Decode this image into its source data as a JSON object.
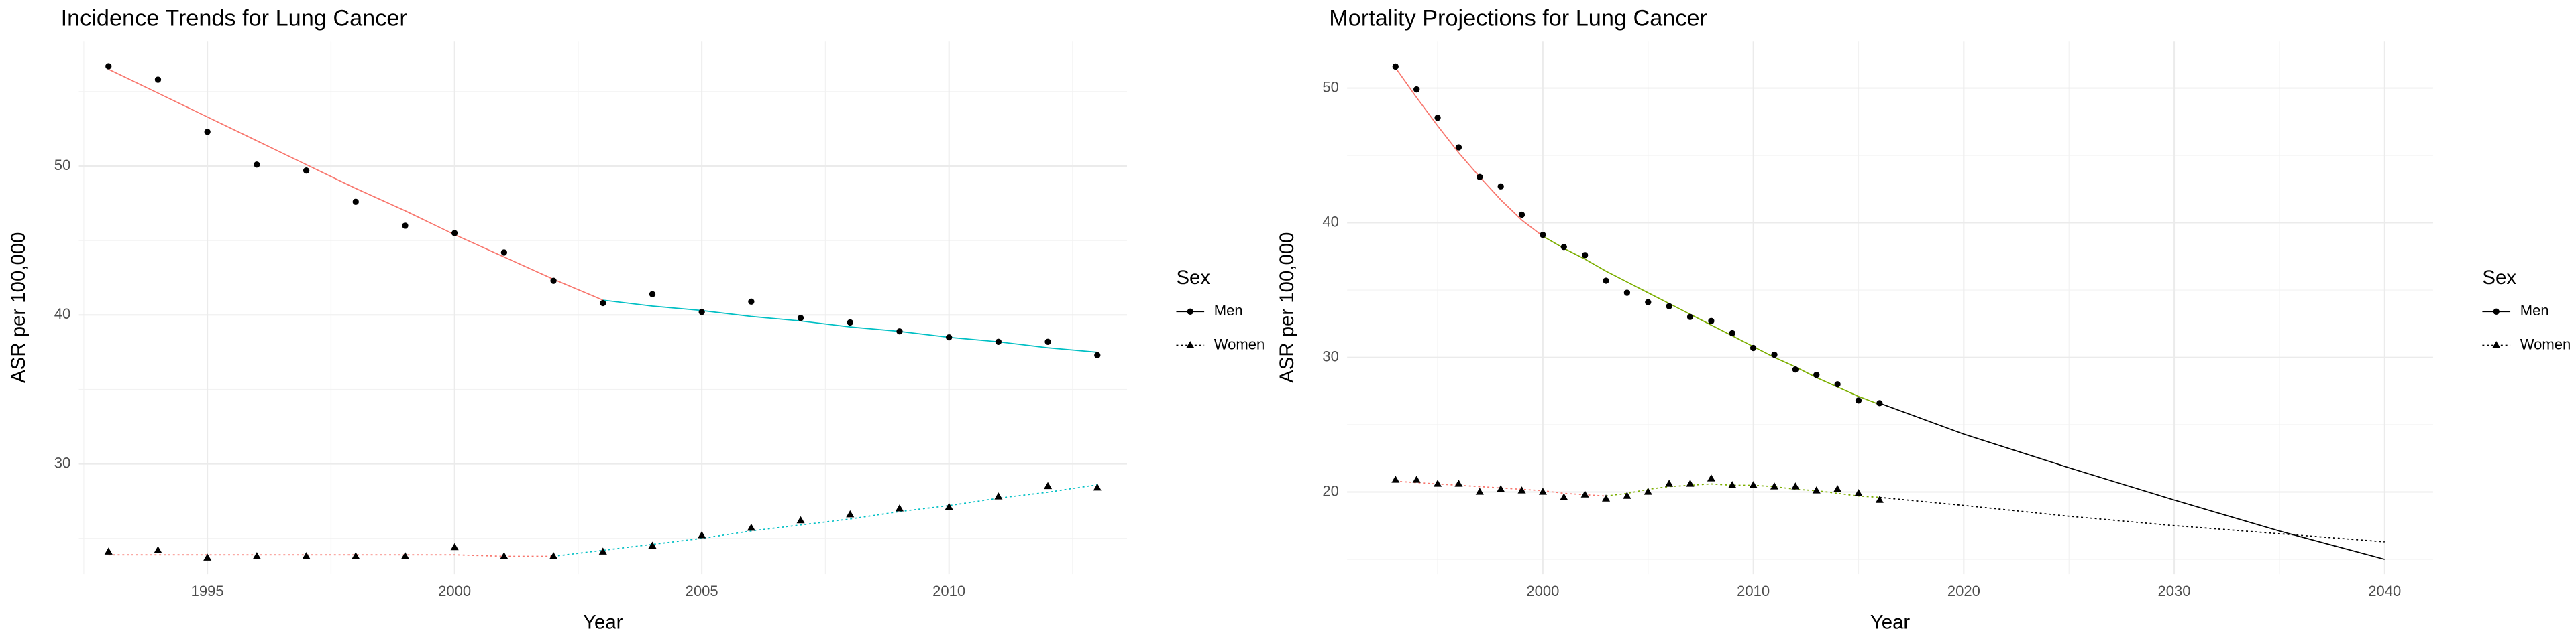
{
  "chart_data": [
    {
      "type": "line",
      "title": "Incidence Trends for Lung Cancer",
      "x_label": "Year",
      "y_label": "ASR per 100,000",
      "legend_title": "Sex",
      "legend": "right",
      "grid": true,
      "x": [
        1993,
        1994,
        1995,
        1996,
        1997,
        1998,
        1999,
        2000,
        2001,
        2002,
        2003,
        2004,
        2005,
        2006,
        2007,
        2008,
        2009,
        2010,
        2011,
        2012,
        2013
      ],
      "series": [
        {
          "name": "Men",
          "color": "#000000",
          "marker": "circle",
          "linestyle": "solid",
          "values": [
            56.7,
            55.8,
            52.3,
            50.1,
            49.7,
            47.6,
            46.0,
            45.5,
            44.2,
            42.3,
            40.8,
            41.4,
            40.2,
            40.9,
            39.8,
            39.5,
            38.9,
            38.5,
            38.2,
            38.2,
            37.3
          ]
        },
        {
          "name": "Women",
          "color": "#000000",
          "marker": "triangle",
          "linestyle": "dotted",
          "values": [
            24.1,
            24.2,
            23.7,
            23.8,
            23.8,
            23.8,
            23.8,
            24.4,
            23.8,
            23.8,
            24.1,
            24.5,
            25.2,
            25.7,
            26.2,
            26.6,
            27.0,
            27.1,
            27.8,
            28.5,
            28.4
          ]
        }
      ],
      "fits": [
        {
          "color": "#F8766D",
          "linestyle": "solid",
          "x": [
            1993,
            1994,
            1995,
            1996,
            1997,
            1998,
            1999,
            2000,
            2001,
            2002,
            2003
          ],
          "values": [
            56.5,
            54.9,
            53.3,
            51.7,
            50.1,
            48.5,
            47.0,
            45.4,
            43.9,
            42.4,
            41.0
          ]
        },
        {
          "color": "#00BFC4",
          "linestyle": "solid",
          "x": [
            2003,
            2004,
            2005,
            2006,
            2007,
            2008,
            2009,
            2010,
            2011,
            2012,
            2013
          ],
          "values": [
            41.0,
            40.6,
            40.3,
            39.9,
            39.6,
            39.2,
            38.9,
            38.5,
            38.2,
            37.8,
            37.5
          ]
        },
        {
          "color": "#F8766D",
          "linestyle": "dotted",
          "x": [
            1993,
            1994,
            1995,
            1996,
            1997,
            1998,
            1999,
            2000,
            2001,
            2002
          ],
          "values": [
            23.9,
            23.9,
            23.9,
            23.9,
            23.9,
            23.9,
            23.9,
            23.9,
            23.8,
            23.8
          ]
        },
        {
          "color": "#00BFC4",
          "linestyle": "dotted",
          "x": [
            2002,
            2003,
            2004,
            2005,
            2006,
            2007,
            2008,
            2009,
            2010,
            2011,
            2012,
            2013
          ],
          "values": [
            23.8,
            24.2,
            24.6,
            25.0,
            25.5,
            25.9,
            26.3,
            26.8,
            27.2,
            27.7,
            28.1,
            28.6
          ]
        }
      ],
      "xlim": [
        1992.4,
        2013.6
      ],
      "ylim": [
        22.6,
        58.4
      ],
      "xticks": [
        1995,
        2000,
        2005,
        2010
      ],
      "yticks": [
        30,
        40,
        50
      ],
      "minor_xticks": [
        1992.5,
        1997.5,
        2002.5,
        2007.5,
        2012.5
      ],
      "minor_yticks": [
        25,
        35,
        45,
        55
      ]
    },
    {
      "type": "line",
      "title": "Mortality Projections for Lung Cancer",
      "x_label": "Year",
      "y_label": "ASR per 100,000",
      "legend_title": "Sex",
      "legend": "right",
      "grid": true,
      "x": [
        1993,
        1994,
        1995,
        1996,
        1997,
        1998,
        1999,
        2000,
        2001,
        2002,
        2003,
        2004,
        2005,
        2006,
        2007,
        2008,
        2009,
        2010,
        2011,
        2012,
        2013,
        2014,
        2015,
        2016
      ],
      "series": [
        {
          "name": "Men",
          "color": "#000000",
          "marker": "circle",
          "linestyle": "solid",
          "values": [
            51.6,
            49.9,
            47.8,
            45.6,
            43.4,
            42.7,
            40.6,
            39.1,
            38.2,
            37.6,
            35.7,
            34.8,
            34.1,
            33.8,
            33.0,
            32.7,
            31.8,
            30.7,
            30.2,
            29.1,
            28.7,
            28.0,
            26.8,
            26.6
          ]
        },
        {
          "name": "Women",
          "color": "#000000",
          "marker": "triangle",
          "linestyle": "dotted",
          "values": [
            20.9,
            20.9,
            20.6,
            20.6,
            20.0,
            20.2,
            20.1,
            20.0,
            19.6,
            19.8,
            19.5,
            19.7,
            20.0,
            20.6,
            20.6,
            21.0,
            20.5,
            20.5,
            20.4,
            20.4,
            20.1,
            20.2,
            19.9,
            19.4
          ]
        }
      ],
      "fits": [
        {
          "color": "#F8766D",
          "linestyle": "solid",
          "x": [
            1993,
            1994,
            1995,
            1996,
            1997,
            1998,
            1999,
            2000
          ],
          "values": [
            51.5,
            49.3,
            47.2,
            45.2,
            43.4,
            41.7,
            40.2,
            39.0
          ]
        },
        {
          "color": "#7CAE00",
          "linestyle": "solid",
          "x": [
            2000,
            2001,
            2002,
            2003,
            2004,
            2005,
            2006,
            2007,
            2008,
            2009,
            2010,
            2011,
            2012,
            2013,
            2014,
            2015,
            2016
          ],
          "values": [
            39.0,
            38.1,
            37.3,
            36.4,
            35.6,
            34.8,
            34.0,
            33.2,
            32.4,
            31.6,
            30.8,
            30.0,
            29.3,
            28.5,
            27.8,
            27.1,
            26.5
          ]
        },
        {
          "color": "#000000",
          "linestyle": "solid",
          "x": [
            2016,
            2020,
            2025,
            2030,
            2035,
            2040
          ],
          "values": [
            26.6,
            24.3,
            21.8,
            19.4,
            17.1,
            15.0
          ]
        },
        {
          "color": "#F8766D",
          "linestyle": "dotted",
          "x": [
            1993,
            1994,
            1995,
            1996,
            1997,
            1998,
            1999,
            2000,
            2001,
            2002,
            2003
          ],
          "values": [
            20.8,
            20.7,
            20.6,
            20.5,
            20.4,
            20.3,
            20.2,
            20.1,
            19.9,
            19.8,
            19.7
          ]
        },
        {
          "color": "#7CAE00",
          "linestyle": "dotted",
          "x": [
            2003,
            2004,
            2005,
            2006,
            2007,
            2008,
            2009,
            2010,
            2011,
            2012,
            2013,
            2014,
            2015,
            2016
          ],
          "values": [
            19.7,
            19.9,
            20.2,
            20.4,
            20.5,
            20.6,
            20.5,
            20.5,
            20.4,
            20.2,
            20.1,
            19.9,
            19.7,
            19.6
          ]
        },
        {
          "color": "#000000",
          "linestyle": "dotted",
          "x": [
            2016,
            2020,
            2025,
            2030,
            2035,
            2040
          ],
          "values": [
            19.6,
            19.0,
            18.2,
            17.5,
            16.9,
            16.3
          ]
        }
      ],
      "xlim": [
        1990.7,
        2042.3
      ],
      "ylim": [
        13.9,
        53.5
      ],
      "xticks": [
        2000,
        2010,
        2020,
        2030,
        2040
      ],
      "yticks": [
        20,
        30,
        40,
        50
      ],
      "minor_xticks": [
        1995,
        2005,
        2015,
        2025,
        2035
      ],
      "minor_yticks": [
        15,
        25,
        35,
        45
      ]
    }
  ]
}
